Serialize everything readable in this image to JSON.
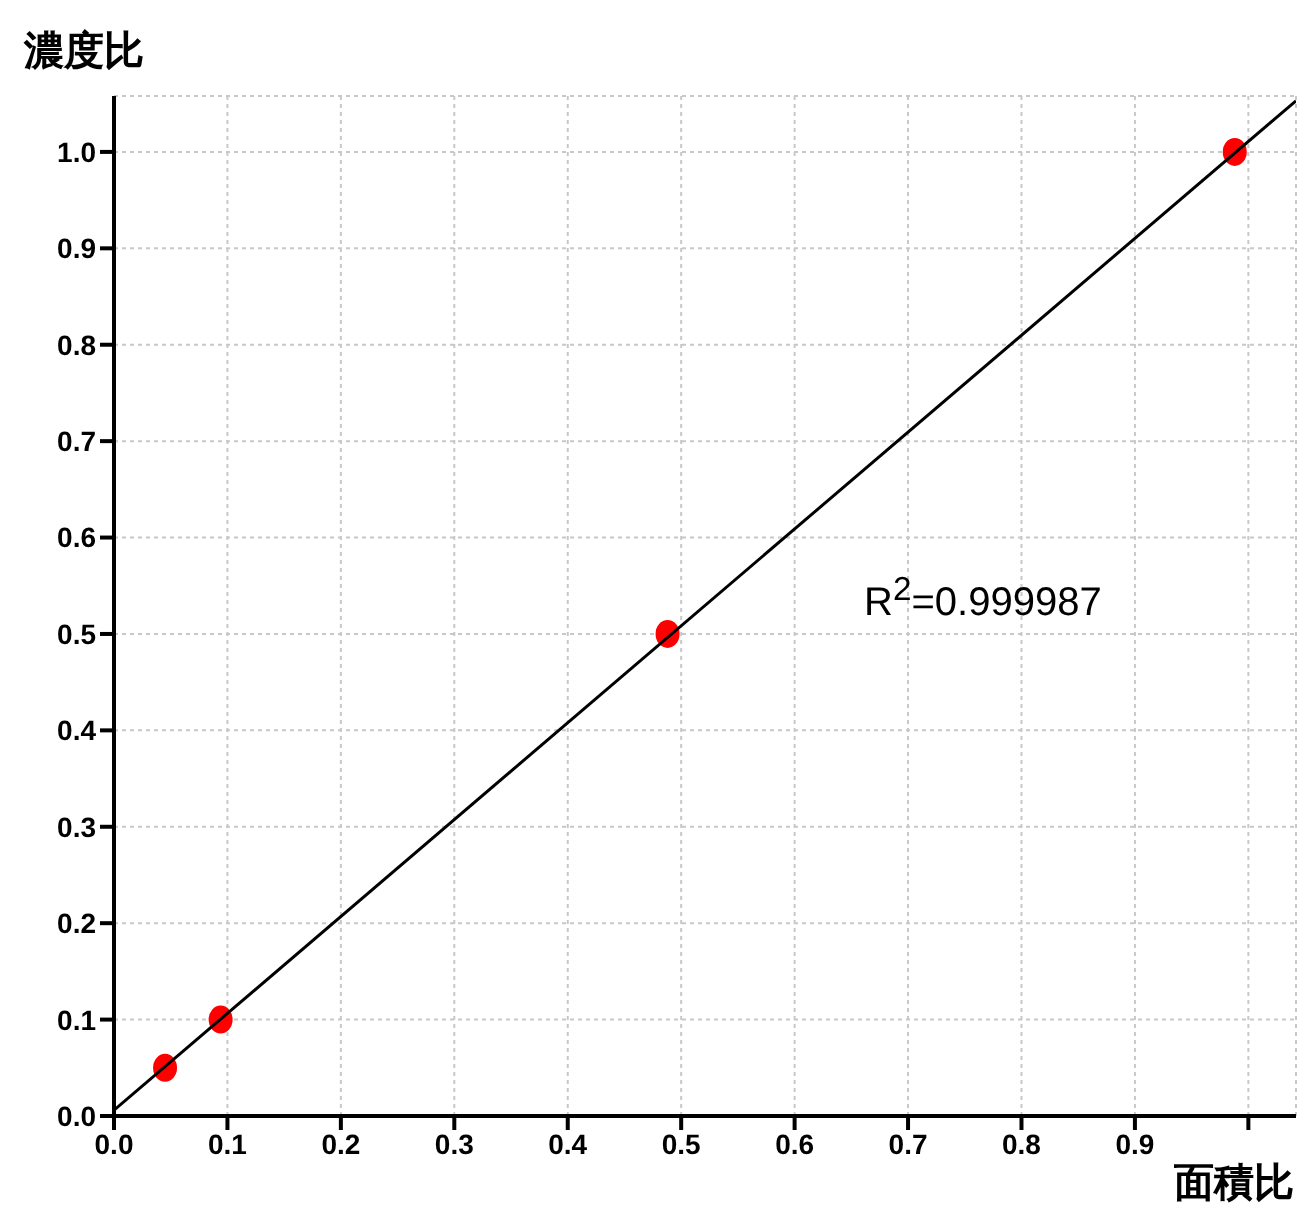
{
  "chart_data": {
    "type": "scatter",
    "xlabel": "面積比",
    "ylabel": "濃度比",
    "annotations": [
      "R$^{2}$=0.999987"
    ],
    "series": [
      {
        "type": "scatter",
        "color": "#ff0000",
        "marker": "circle",
        "x": [
          0.045,
          0.094,
          0.488,
          0.988
        ],
        "values": [
          0.05,
          0.1,
          0.5,
          1.0
        ]
      },
      {
        "type": "line",
        "color": "#000000",
        "marker": "none",
        "x": [
          0,
          1.042
        ],
        "values": [
          0.006,
          1.053
        ]
      }
    ],
    "xlim": [
      0,
      1.042
    ],
    "ylim": [
      0,
      1.058
    ],
    "xticks": [
      {
        "value": 0,
        "label": "0.0"
      },
      0.1,
      0.2,
      0.3,
      0.4,
      0.5,
      0.6,
      0.7,
      0.8,
      0.9,
      {
        "value": 1,
        "label": null
      }
    ],
    "yticks": [
      {
        "value": 0,
        "label": "0.0"
      },
      0.1,
      0.2,
      0.3,
      0.4,
      0.5,
      0.6,
      0.7,
      0.8,
      0.9,
      {
        "value": 1,
        "label": "1.0"
      }
    ],
    "grid": true
  }
}
